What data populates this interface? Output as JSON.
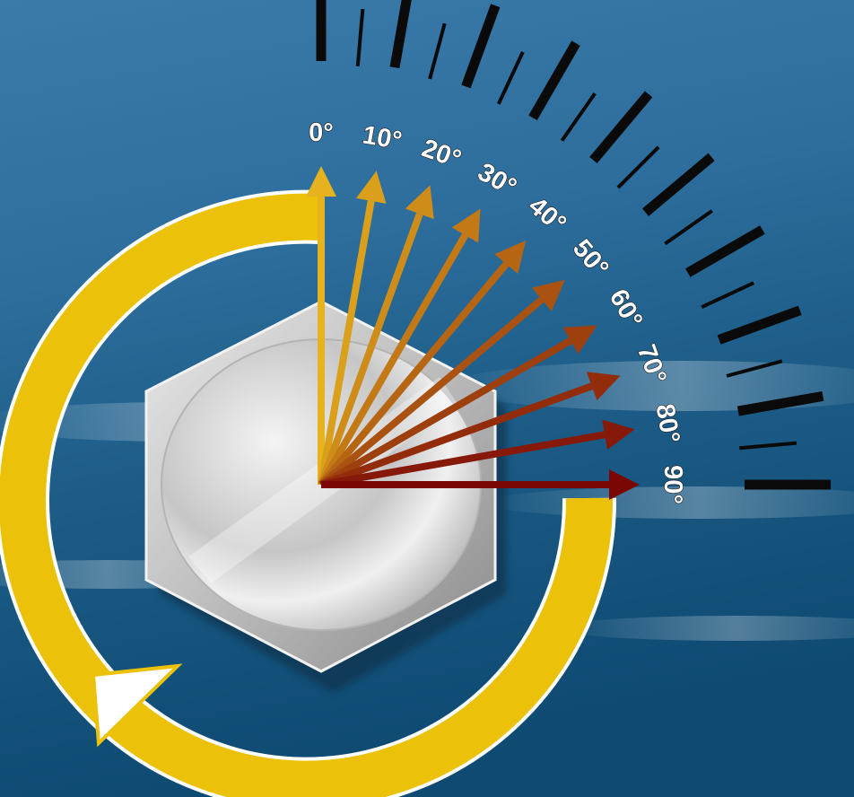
{
  "colors": {
    "background_top": "#2f6a96",
    "background_bottom": "#0f4f78",
    "rotation_ring": "#ecc10a",
    "rotation_arrowhead": "#ffffff",
    "tick_marks": "#0a0a0a",
    "bolt_face": "#c9c9c9",
    "arrow_start": "#e6b21e",
    "arrow_end": "#7a0606"
  },
  "icons": {
    "bolt": "hex-bolt-head-icon",
    "rotation": "clockwise-rotation-arrow-icon"
  },
  "angles": [
    {
      "value": 0,
      "label": "0°"
    },
    {
      "value": 10,
      "label": "10°"
    },
    {
      "value": 20,
      "label": "20°"
    },
    {
      "value": 30,
      "label": "30°"
    },
    {
      "value": 40,
      "label": "40°"
    },
    {
      "value": 50,
      "label": "50°"
    },
    {
      "value": 60,
      "label": "60°"
    },
    {
      "value": 70,
      "label": "70°"
    },
    {
      "value": 80,
      "label": "80°"
    },
    {
      "value": 90,
      "label": "90°"
    }
  ],
  "tick_scale": {
    "start_deg": 0,
    "end_deg": 90,
    "major_step_deg": 10,
    "minor_offset_deg": 5
  }
}
